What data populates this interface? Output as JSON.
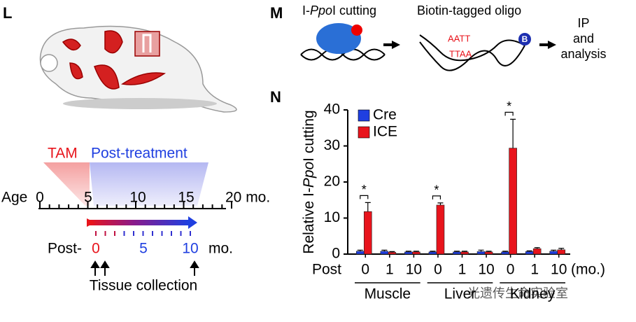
{
  "panel_letters": [
    "L",
    "M",
    "N"
  ],
  "timeline": {
    "tam": "TAM",
    "post_treatment": "Post-treatment",
    "age_label": "Age",
    "age_ticks": [
      "0",
      "5",
      "10",
      "15",
      "20 mo."
    ],
    "post_label": "Post-",
    "post_ticks": [
      "0",
      "5",
      "10"
    ],
    "post_unit": "mo.",
    "collection": "Tissue collection"
  },
  "scheme": {
    "step1": [
      "I-",
      "Ppo",
      "I cutting"
    ],
    "step2": "Biotin-tagged oligo",
    "oligo_top": "AATT",
    "oligo_bottom": "TTAA",
    "biotin": "B",
    "step3": [
      "IP",
      "and",
      "analysis"
    ]
  },
  "watermark": "光遗传生命实验室",
  "chart_data": {
    "type": "bar",
    "y_label": [
      "Relative I-",
      "Ppo",
      "I cutting"
    ],
    "x_label": "Post",
    "x_unit": "(mo.)",
    "categories": [
      "0",
      "1",
      "10",
      "0",
      "1",
      "10",
      "0",
      "1",
      "10"
    ],
    "groups": [
      "Muscle",
      "Liver",
      "Kidney"
    ],
    "series": [
      {
        "name": "Cre",
        "color": "#1f3fe0",
        "values": [
          0.8,
          0.8,
          0.6,
          0.6,
          0.6,
          0.7,
          0.6,
          0.7,
          0.8
        ],
        "errors": [
          0.3,
          0.3,
          0.2,
          0.2,
          0.2,
          0.4,
          0.2,
          0.2,
          0.3
        ]
      },
      {
        "name": "ICE",
        "color": "#e8141c",
        "values": [
          11.8,
          0.5,
          0.6,
          13.6,
          0.6,
          0.6,
          29.4,
          1.5,
          1.2
        ],
        "errors": [
          2.5,
          0.2,
          0.2,
          0.6,
          0.2,
          0.2,
          8.0,
          0.3,
          0.4
        ]
      }
    ],
    "annotations": [
      "*",
      "*",
      "*"
    ],
    "ylim": [
      0,
      40
    ],
    "yticks": [
      0,
      10,
      20,
      30,
      40
    ]
  }
}
